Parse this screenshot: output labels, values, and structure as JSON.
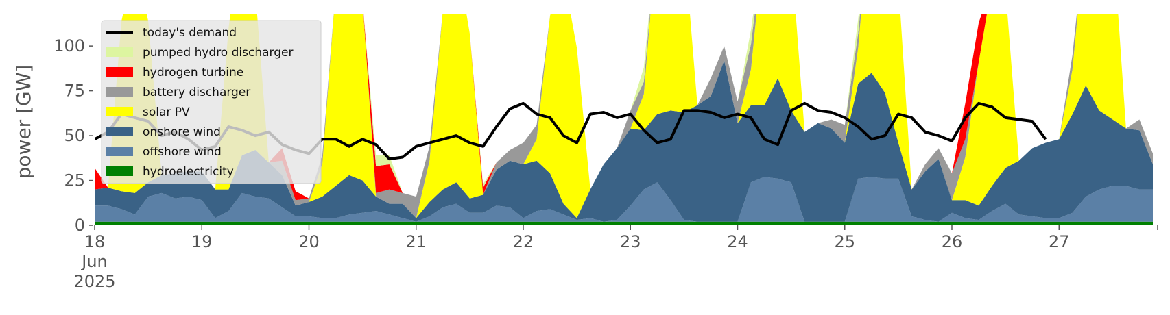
{
  "chart_data": {
    "type": "area",
    "title": "",
    "xlabel": "",
    "ylabel": "power [GW]",
    "x_start": "2025-06-18T00:00",
    "x_step_hours": 3,
    "x_ticks": [
      {
        "label": [
          "18",
          "Jun",
          "2025"
        ],
        "day": 0
      },
      {
        "label": [
          "19"
        ],
        "day": 1
      },
      {
        "label": [
          "20"
        ],
        "day": 2
      },
      {
        "label": [
          "21"
        ],
        "day": 3
      },
      {
        "label": [
          "22"
        ],
        "day": 4
      },
      {
        "label": [
          "23"
        ],
        "day": 5
      },
      {
        "label": [
          "24"
        ],
        "day": 6
      },
      {
        "label": [
          "25"
        ],
        "day": 7
      },
      {
        "label": [
          "26"
        ],
        "day": 8
      },
      {
        "label": [
          "27"
        ],
        "day": 9
      }
    ],
    "y_ticks": [
      0,
      25,
      50,
      75,
      100
    ],
    "xlim_days": [
      0,
      9.92
    ],
    "ylim": [
      0,
      118
    ],
    "grid": false,
    "legend_position": "top-left",
    "stack_order": [
      "hydroelectricity",
      "offshore wind",
      "onshore wind",
      "solar PV",
      "battery discharger",
      "hydrogen turbine",
      "pumped hydro discharger"
    ],
    "series": [
      {
        "name": "hydroelectricity",
        "color": "#008000",
        "kind": "area",
        "values": [
          2,
          2,
          2,
          2,
          2,
          2,
          2,
          2,
          2,
          2,
          2,
          2,
          2,
          2,
          2,
          2,
          2,
          2,
          2,
          2,
          2,
          2,
          2,
          2,
          2,
          2,
          2,
          2,
          2,
          2,
          2,
          2,
          2,
          2,
          2,
          2,
          2,
          2,
          2,
          2,
          2,
          2,
          2,
          2,
          2,
          2,
          2,
          2,
          2,
          2,
          2,
          2,
          2,
          2,
          2,
          2,
          2,
          2,
          2,
          2,
          2,
          2,
          2,
          2,
          2,
          2,
          2,
          2,
          2,
          2,
          2,
          2,
          2,
          2,
          2,
          2,
          2,
          2,
          2,
          2
        ]
      },
      {
        "name": "offshore wind",
        "color": "#5b80a6",
        "kind": "area",
        "values": [
          9,
          9,
          7,
          4,
          14,
          16,
          13,
          14,
          12,
          2,
          6,
          16,
          14,
          13,
          8,
          3,
          3,
          2,
          2,
          4,
          5,
          6,
          4,
          2,
          0,
          3,
          8,
          10,
          5,
          5,
          9,
          8,
          2,
          6,
          7,
          4,
          1,
          2,
          0,
          1,
          9,
          18,
          22,
          12,
          1,
          0,
          0,
          0,
          0,
          22,
          25,
          24,
          22,
          0,
          0,
          0,
          0,
          24,
          25,
          24,
          24,
          3,
          1,
          0,
          5,
          2,
          1,
          6,
          10,
          4,
          3,
          2,
          2,
          5,
          14,
          18,
          20,
          20,
          18,
          18
        ]
      },
      {
        "name": "onshore wind",
        "color": "#3a6286",
        "kind": "area",
        "values": [
          9,
          10,
          10,
          12,
          8,
          10,
          14,
          14,
          16,
          16,
          12,
          21,
          26,
          20,
          18,
          6,
          8,
          12,
          18,
          22,
          18,
          8,
          6,
          8,
          2,
          8,
          10,
          12,
          8,
          10,
          20,
          26,
          30,
          28,
          20,
          6,
          1,
          16,
          32,
          40,
          43,
          33,
          38,
          50,
          60,
          65,
          70,
          90,
          55,
          43,
          40,
          56,
          40,
          50,
          55,
          52,
          44,
          53,
          58,
          48,
          20,
          15,
          27,
          35,
          7,
          10,
          8,
          14,
          20,
          30,
          38,
          42,
          44,
          55,
          62,
          44,
          37,
          32,
          33,
          14
        ]
      },
      {
        "name": "solar PV",
        "color": "#ffff00",
        "kind": "area",
        "values": [
          0,
          0,
          95,
          128,
          90,
          0,
          0,
          0,
          0,
          0,
          90,
          128,
          88,
          0,
          0,
          0,
          0,
          18,
          110,
          128,
          100,
          0,
          0,
          0,
          0,
          23,
          100,
          128,
          92,
          0,
          0,
          0,
          0,
          12,
          88,
          128,
          95,
          0,
          0,
          0,
          0,
          20,
          102,
          128,
          95,
          0,
          0,
          0,
          0,
          20,
          95,
          128,
          88,
          0,
          0,
          0,
          0,
          20,
          100,
          128,
          90,
          0,
          0,
          0,
          0,
          24,
          80,
          113,
          100,
          0,
          0,
          0,
          0,
          25,
          88,
          123,
          103,
          0,
          0,
          0
        ]
      },
      {
        "name": "battery discharger",
        "color": "#999999",
        "kind": "area",
        "values": [
          0,
          0,
          0,
          0,
          0,
          0,
          0,
          0,
          0,
          0,
          0,
          0,
          0,
          0,
          8,
          3,
          2,
          5,
          0,
          0,
          0,
          2,
          8,
          6,
          12,
          8,
          0,
          0,
          0,
          0,
          4,
          6,
          12,
          8,
          0,
          0,
          0,
          0,
          0,
          0,
          10,
          7,
          0,
          0,
          0,
          0,
          10,
          8,
          12,
          14,
          0,
          0,
          0,
          0,
          0,
          5,
          10,
          8,
          0,
          0,
          0,
          0,
          4,
          6,
          15,
          10,
          0,
          0,
          0,
          0,
          0,
          0,
          0,
          8,
          0,
          0,
          0,
          0,
          6,
          6
        ]
      },
      {
        "name": "hydrogen turbine",
        "color": "#ff0000",
        "kind": "area",
        "values": [
          12,
          0,
          0,
          0,
          0,
          0,
          0,
          0,
          0,
          0,
          0,
          0,
          0,
          0,
          7,
          5,
          0,
          0,
          0,
          0,
          0,
          15,
          14,
          0,
          0,
          0,
          0,
          0,
          0,
          4,
          0,
          0,
          0,
          0,
          0,
          0,
          0,
          0,
          0,
          0,
          0,
          0,
          0,
          0,
          0,
          0,
          0,
          0,
          0,
          0,
          0,
          0,
          0,
          0,
          0,
          0,
          0,
          0,
          0,
          0,
          0,
          0,
          0,
          0,
          0,
          20,
          22,
          0,
          0,
          0,
          0,
          0,
          0,
          0,
          0,
          0,
          0,
          0,
          0,
          0
        ]
      },
      {
        "name": "pumped hydro discharger",
        "color": "#ddf5a0",
        "kind": "area",
        "values": [
          0,
          0,
          0,
          0,
          0,
          0,
          0,
          0,
          0,
          0,
          0,
          0,
          0,
          0,
          0,
          0,
          0,
          0,
          0,
          0,
          0,
          6,
          5,
          0,
          0,
          0,
          0,
          0,
          0,
          2,
          0,
          0,
          0,
          0,
          0,
          0,
          0,
          0,
          0,
          0,
          0,
          8,
          0,
          0,
          0,
          0,
          0,
          0,
          0,
          8,
          0,
          0,
          0,
          0,
          0,
          0,
          0,
          8,
          0,
          0,
          0,
          0,
          0,
          0,
          0,
          0,
          0,
          0,
          0,
          0,
          0,
          0,
          0,
          0,
          0,
          0,
          0,
          0,
          0,
          0
        ]
      },
      {
        "name": "today's demand",
        "color": "#000000",
        "kind": "line",
        "values": [
          48,
          52,
          62,
          60,
          58,
          50,
          52,
          48,
          42,
          44,
          55,
          53,
          50,
          52,
          45,
          42,
          40,
          48,
          48,
          44,
          48,
          45,
          37,
          38,
          44,
          46,
          48,
          50,
          46,
          44,
          55,
          65,
          68,
          62,
          60,
          50,
          46,
          62,
          63,
          60,
          62,
          53,
          46,
          48,
          64,
          64,
          63,
          60,
          62,
          60,
          48,
          45,
          64,
          68,
          64,
          63,
          60,
          55,
          48,
          50,
          62,
          60,
          52,
          50,
          47,
          60,
          68,
          66,
          60,
          59,
          58,
          48
        ]
      }
    ],
    "legend": [
      "today's demand",
      "pumped hydro discharger",
      "hydrogen turbine",
      "battery discharger",
      "solar PV",
      "onshore wind",
      "offshore wind",
      "hydroelectricity"
    ]
  }
}
